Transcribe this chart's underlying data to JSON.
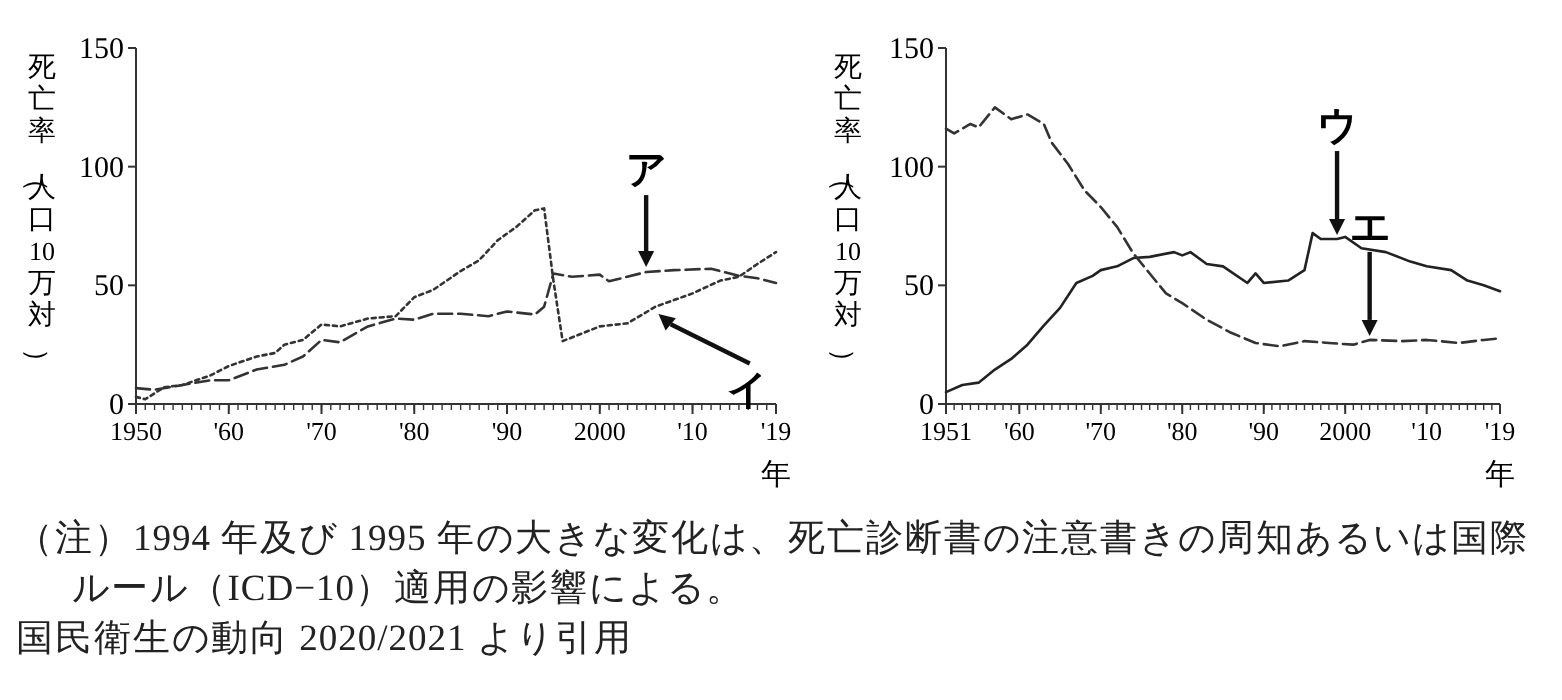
{
  "chart_data": [
    {
      "type": "line",
      "ylabel": "死亡率（人口10万対）",
      "xlabel": "年",
      "xlim": [
        1950,
        2019
      ],
      "ylim": [
        0,
        150
      ],
      "yticks": [
        0,
        50,
        100,
        150
      ],
      "xticks": [
        {
          "value": 1950,
          "label": "1950"
        },
        {
          "value": 1960,
          "label": "'60"
        },
        {
          "value": 1970,
          "label": "'70"
        },
        {
          "value": 1980,
          "label": "'80"
        },
        {
          "value": 1990,
          "label": "'90"
        },
        {
          "value": 2000,
          "label": "2000"
        },
        {
          "value": 2010,
          "label": "'10"
        },
        {
          "value": 2019,
          "label": "'19"
        }
      ],
      "series": [
        {
          "color": "#333333",
          "line_style": "dashed",
          "x": [
            1950,
            1952,
            1955,
            1958,
            1960,
            1963,
            1966,
            1968,
            1970,
            1972,
            1975,
            1978,
            1980,
            1982,
            1985,
            1988,
            1990,
            1993,
            1994,
            1995,
            1997,
            2000,
            2001,
            2005,
            2008,
            2012,
            2015,
            2017,
            2019
          ],
          "values": [
            6.7,
            6,
            8,
            10,
            10,
            14.5,
            16.5,
            20,
            27,
            26,
            32.7,
            36,
            35.5,
            38,
            38,
            37,
            39,
            37.7,
            41,
            55,
            53.6,
            54.5,
            51.7,
            55.6,
            56.4,
            57,
            54,
            53,
            51
          ]
        },
        {
          "color": "#333333",
          "line_style": "dotted",
          "x": [
            1950,
            1951,
            1953,
            1955,
            1958,
            1960,
            1963,
            1965,
            1966,
            1968,
            1970,
            1972,
            1975,
            1978,
            1980,
            1982,
            1985,
            1987,
            1989,
            1991,
            1993,
            1994,
            1995,
            1996,
            2000,
            2003,
            2006,
            2010,
            2013,
            2015,
            2017,
            2019
          ],
          "values": [
            3,
            2,
            7,
            8,
            12,
            16,
            20,
            21.5,
            25,
            27,
            33.5,
            32.7,
            36,
            37,
            45,
            48,
            56,
            60.6,
            69,
            74.6,
            81.6,
            82.4,
            52,
            26.5,
            32.7,
            34,
            41,
            46.6,
            52,
            53.6,
            59,
            64
          ]
        }
      ],
      "annotations": [
        {
          "text": "ア",
          "x": 2005,
          "y": 56
        },
        {
          "text": "イ",
          "x": 2006,
          "y": 39
        },
        "（注）1994 年及び 1995 年の大きな変化は、死亡診断書の注意書きの周知あるいは国際ルール（ICD−10）適用の影響による。",
        "国民衛生の動向 2020/2021 より引用"
      ]
    },
    {
      "type": "line",
      "ylabel": "死亡率（人口10万対）",
      "xlabel": "年",
      "xlim": [
        1951,
        2019
      ],
      "ylim": [
        0,
        150
      ],
      "yticks": [
        0,
        50,
        100,
        150
      ],
      "xticks": [
        {
          "value": 1951,
          "label": "1951"
        },
        {
          "value": 1960,
          "label": "'60"
        },
        {
          "value": 1970,
          "label": "'70"
        },
        {
          "value": 1980,
          "label": "'80"
        },
        {
          "value": 1990,
          "label": "'90"
        },
        {
          "value": 2000,
          "label": "2000"
        },
        {
          "value": 2010,
          "label": "'10"
        },
        {
          "value": 2019,
          "label": "'19"
        }
      ],
      "series": [
        {
          "color": "#222222",
          "line_style": "solid",
          "x": [
            1951,
            1953,
            1955,
            1957,
            1959,
            1961,
            1963,
            1965,
            1967,
            1969,
            1970,
            1972,
            1974,
            1976,
            1979,
            1980,
            1981,
            1983,
            1985,
            1988,
            1989,
            1990,
            1993,
            1995,
            1996,
            1997,
            1999,
            2000,
            2002,
            2005,
            2008,
            2010,
            2013,
            2015,
            2017,
            2019
          ],
          "values": [
            5,
            8,
            9,
            14.5,
            19,
            25,
            33,
            40.5,
            51,
            54,
            56.4,
            58,
            61.5,
            62,
            64,
            62.6,
            64,
            59,
            58,
            51,
            55,
            51,
            52,
            56.4,
            72,
            69.5,
            69.5,
            70.4,
            65.6,
            64,
            60,
            58,
            56.4,
            52,
            50,
            47.5
          ]
        },
        {
          "color": "#333333",
          "line_style": "dashed",
          "x": [
            1951,
            1952,
            1954,
            1955,
            1957,
            1959,
            1961,
            1963,
            1964,
            1966,
            1968,
            1970,
            1972,
            1974,
            1976,
            1978,
            1980,
            1983,
            1986,
            1989,
            1992,
            1995,
            1998,
            2001,
            2003,
            2007,
            2010,
            2014,
            2017,
            2019
          ],
          "values": [
            116,
            114,
            118,
            116.5,
            125,
            120,
            122,
            118,
            110,
            101,
            90,
            83,
            74.6,
            63.4,
            55,
            46.6,
            42.5,
            35.5,
            30,
            25.7,
            24.3,
            26.5,
            25.7,
            25,
            27,
            26.5,
            27,
            25.7,
            27,
            27.7
          ]
        }
      ],
      "annotations": [
        {
          "text": "ウ",
          "x": 1999,
          "y": 69.5
        },
        {
          "text": "エ",
          "x": 2003,
          "y": 27
        }
      ]
    }
  ]
}
